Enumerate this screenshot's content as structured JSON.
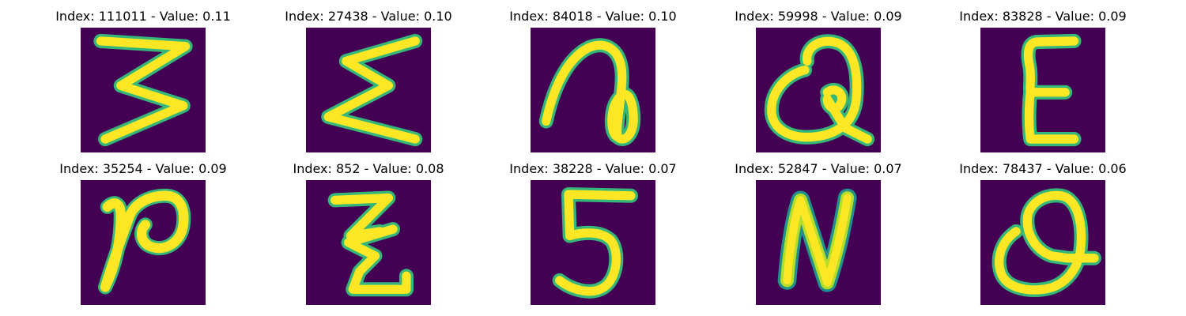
{
  "figure": {
    "background": "#440154",
    "stroke_colors": {
      "core": "#fde725",
      "edge_light": "#b5de2b",
      "edge_mid": "#35b779",
      "edge_dark": "#21918c"
    },
    "panels": [
      {
        "title": "Index: 111011 - Value: 0.11",
        "glyph": "3-like (Σ rotated)"
      },
      {
        "title": "Index: 27438 - Value: 0.10",
        "glyph": "Σ-like zigzag"
      },
      {
        "title": "Index: 84018 - Value: 0.10",
        "glyph": "loop with arch"
      },
      {
        "title": "Index: 59998 - Value: 0.09",
        "glyph": "Q-like loop"
      },
      {
        "title": "Index: 83828 - Value: 0.09",
        "glyph": "E-like"
      },
      {
        "title": "Index: 35254 - Value: 0.09",
        "glyph": "P-like curl"
      },
      {
        "title": "Index: 852 - Value: 0.08",
        "glyph": "Z with crossbar"
      },
      {
        "title": "Index: 38228 - Value: 0.07",
        "glyph": "5"
      },
      {
        "title": "Index: 52847 - Value: 0.07",
        "glyph": "N"
      },
      {
        "title": "Index: 78437 - Value: 0.06",
        "glyph": "Q-like loop"
      }
    ]
  }
}
